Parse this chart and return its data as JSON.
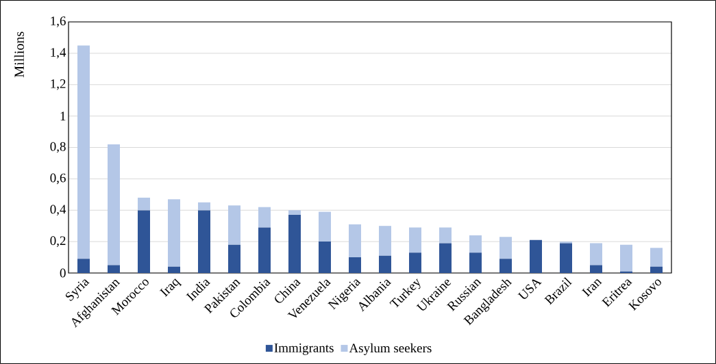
{
  "chart_data": {
    "type": "bar",
    "stacked": true,
    "ylabel": "Millions",
    "categories": [
      "Syria",
      "Afghanistan",
      "Morocco",
      "Iraq",
      "India",
      "Pakistan",
      "Colombia",
      "China",
      "Venezuela",
      "Nigeria",
      "Albania",
      "Turkey",
      "Ukraine",
      "Russian",
      "Bangladesh",
      "USA",
      "Brazil",
      "Iran",
      "Eritrea",
      "Kosovo"
    ],
    "series": [
      {
        "name": "Immigrants",
        "color": "#2f5597",
        "values": [
          0.09,
          0.05,
          0.4,
          0.04,
          0.4,
          0.18,
          0.29,
          0.37,
          0.2,
          0.1,
          0.11,
          0.13,
          0.19,
          0.13,
          0.09,
          0.21,
          0.19,
          0.05,
          0.01,
          0.04
        ]
      },
      {
        "name": "Asylum seekers",
        "color": "#b4c7e7",
        "values": [
          1.36,
          0.77,
          0.08,
          0.43,
          0.05,
          0.25,
          0.13,
          0.03,
          0.19,
          0.21,
          0.19,
          0.16,
          0.1,
          0.11,
          0.14,
          0,
          0.01,
          0.14,
          0.17,
          0.12
        ]
      }
    ],
    "ylim": [
      0,
      1.6
    ],
    "yticks": [
      0,
      {
        "value": 0.2,
        "label": "0,2"
      },
      {
        "value": 0.4,
        "label": "0,4"
      },
      {
        "value": 0.6,
        "label": "0,6"
      },
      {
        "value": 0.8,
        "label": "0,8"
      },
      1,
      {
        "value": 1.2,
        "label": "1,2"
      },
      {
        "value": 1.4,
        "label": "1,4"
      },
      {
        "value": 1.6,
        "label": "1,6"
      }
    ],
    "grid": "y",
    "legend": "bottom"
  }
}
